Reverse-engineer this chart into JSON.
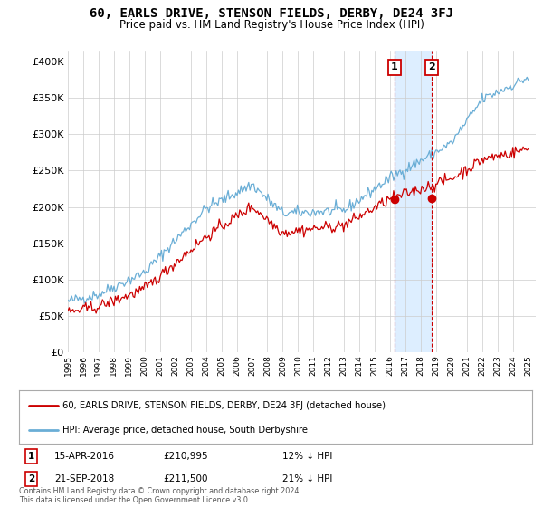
{
  "title": "60, EARLS DRIVE, STENSON FIELDS, DERBY, DE24 3FJ",
  "subtitle": "Price paid vs. HM Land Registry's House Price Index (HPI)",
  "ytick_vals": [
    0,
    50000,
    100000,
    150000,
    200000,
    250000,
    300000,
    350000,
    400000
  ],
  "ylim": [
    0,
    415000
  ],
  "hpi_color": "#6aaed6",
  "price_color": "#cc0000",
  "shade_color": "#ddeeff",
  "marker1_date": 2016.29,
  "marker2_date": 2018.72,
  "marker1_price": 210995,
  "marker2_price": 211500,
  "legend_property_label": "60, EARLS DRIVE, STENSON FIELDS, DERBY, DE24 3FJ (detached house)",
  "legend_hpi_label": "HPI: Average price, detached house, South Derbyshire",
  "table_row1": [
    "1",
    "15-APR-2016",
    "£210,995",
    "12% ↓ HPI"
  ],
  "table_row2": [
    "2",
    "21-SEP-2018",
    "£211,500",
    "21% ↓ HPI"
  ],
  "footer": "Contains HM Land Registry data © Crown copyright and database right 2024.\nThis data is licensed under the Open Government Licence v3.0.",
  "background_color": "#ffffff",
  "grid_color": "#cccccc",
  "xlim_start": 1995,
  "xlim_end": 2025.5
}
